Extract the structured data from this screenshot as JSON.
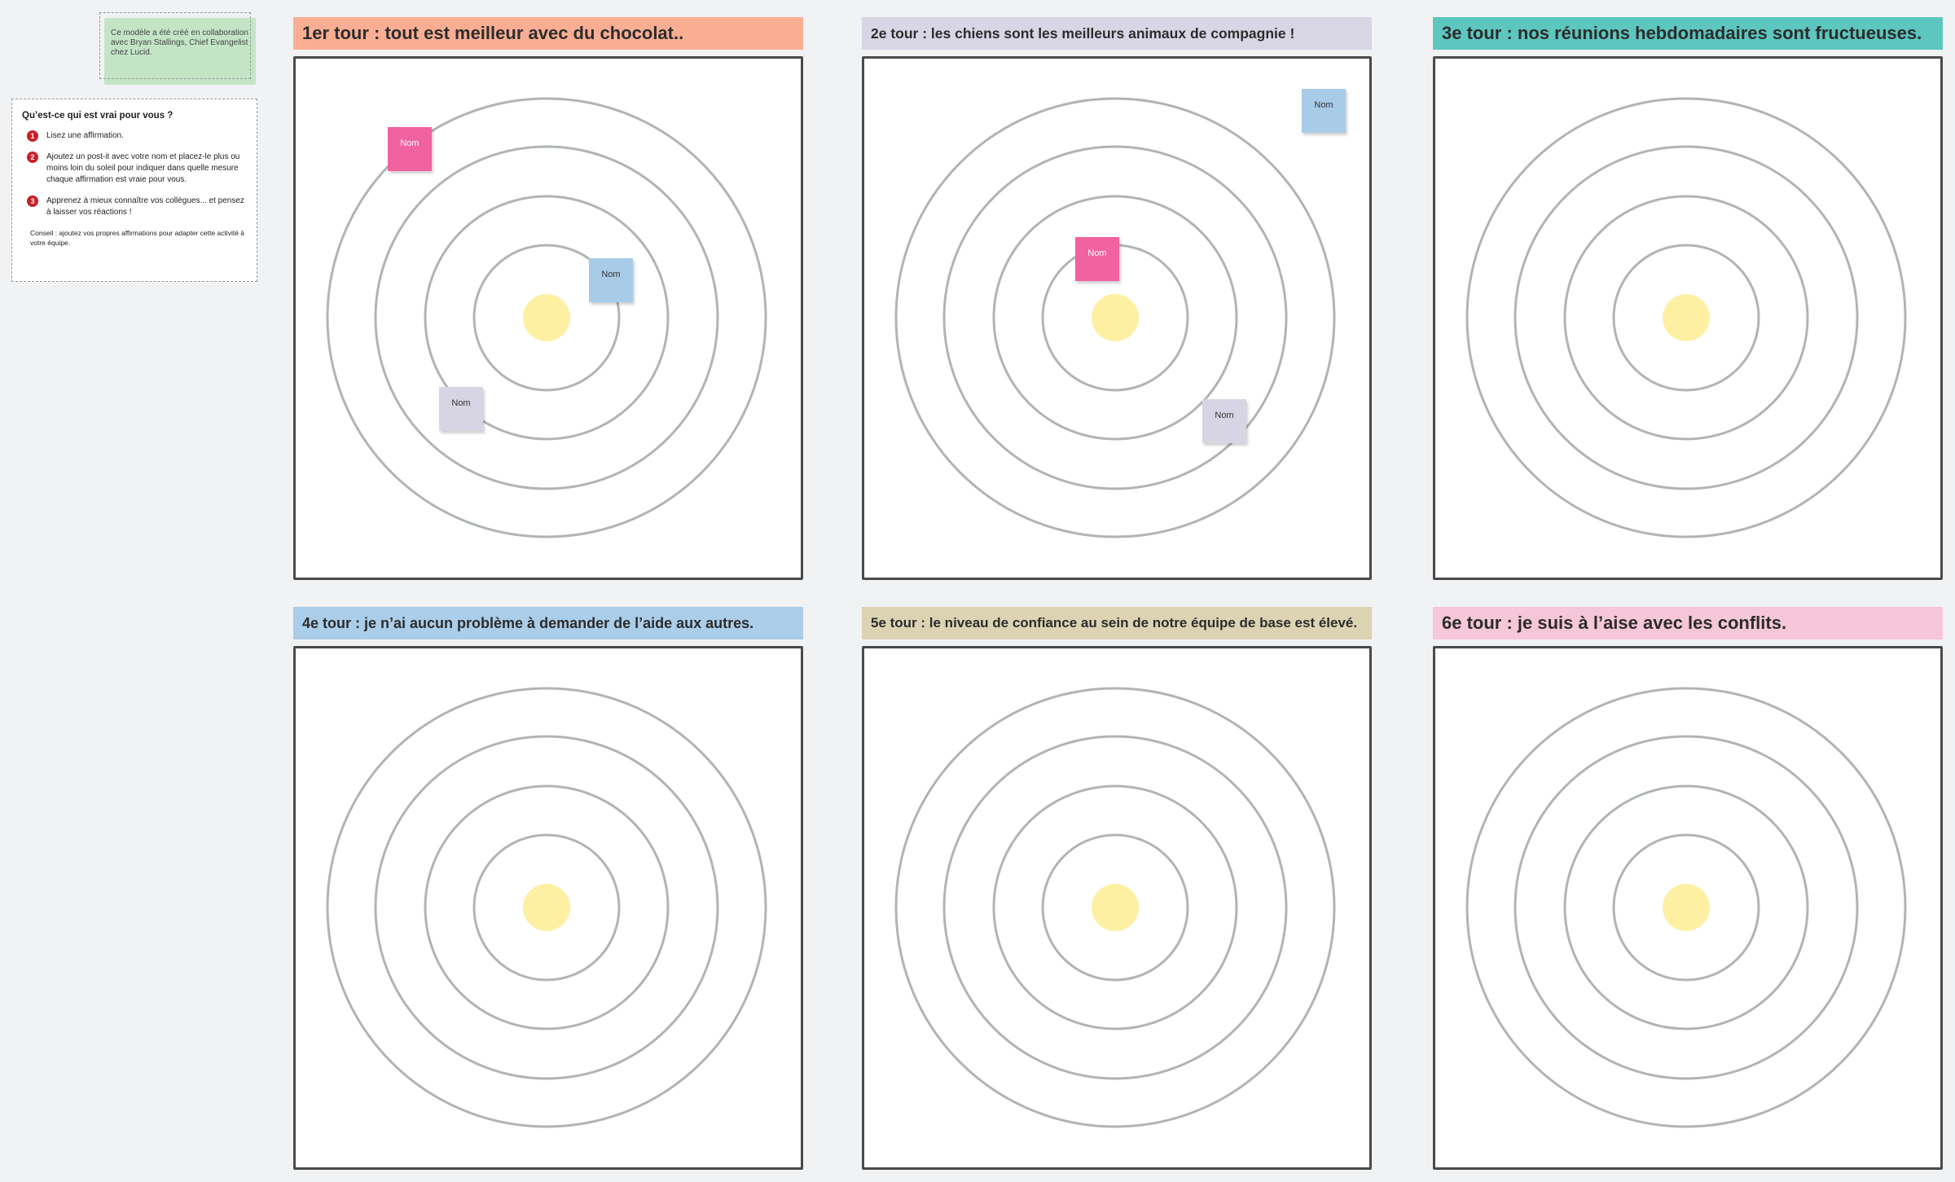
{
  "note": "Ce modèle a été créé en collaboration avec Bryan Stallings, Chief Evangelist chez Lucid.",
  "instructions": {
    "title": "Qu’est-ce qui est vrai pour vous ?",
    "steps": [
      {
        "number": "1",
        "text": "Lisez une affirmation."
      },
      {
        "number": "2",
        "text": "Ajoutez un post-it avec votre nom et placez-le plus ou moins loin du soleil pour indiquer dans quelle mesure chaque affirmation est vraie pour vous."
      },
      {
        "number": "3",
        "text": "Apprenez à mieux connaître vos collègues... et pensez à laisser vos réactions !"
      }
    ],
    "tip": "Conseil : ajoutez vos propres affirmations pour adapter cette activité à votre équipe."
  },
  "panels": [
    {
      "title": "1er tour : tout est meilleur avec du chocolat..",
      "notes": [
        "Nom",
        "Nom",
        "Nom"
      ]
    },
    {
      "title": "2e tour : les chiens sont les meilleurs animaux de compagnie !",
      "notes": [
        "Nom",
        "Nom",
        "Nom"
      ]
    },
    {
      "title": "3e tour : nos réunions hebdomadaires sont fructueuses.",
      "notes": []
    },
    {
      "title": "4e tour : je n’ai aucun problème à demander de l’aide aux autres.",
      "notes": []
    },
    {
      "title": "5e tour : le niveau de confiance au sein de notre équipe de base est élevé.",
      "notes": []
    },
    {
      "title": "6e tour : je suis à l’aise avec les conflits.",
      "notes": []
    }
  ]
}
